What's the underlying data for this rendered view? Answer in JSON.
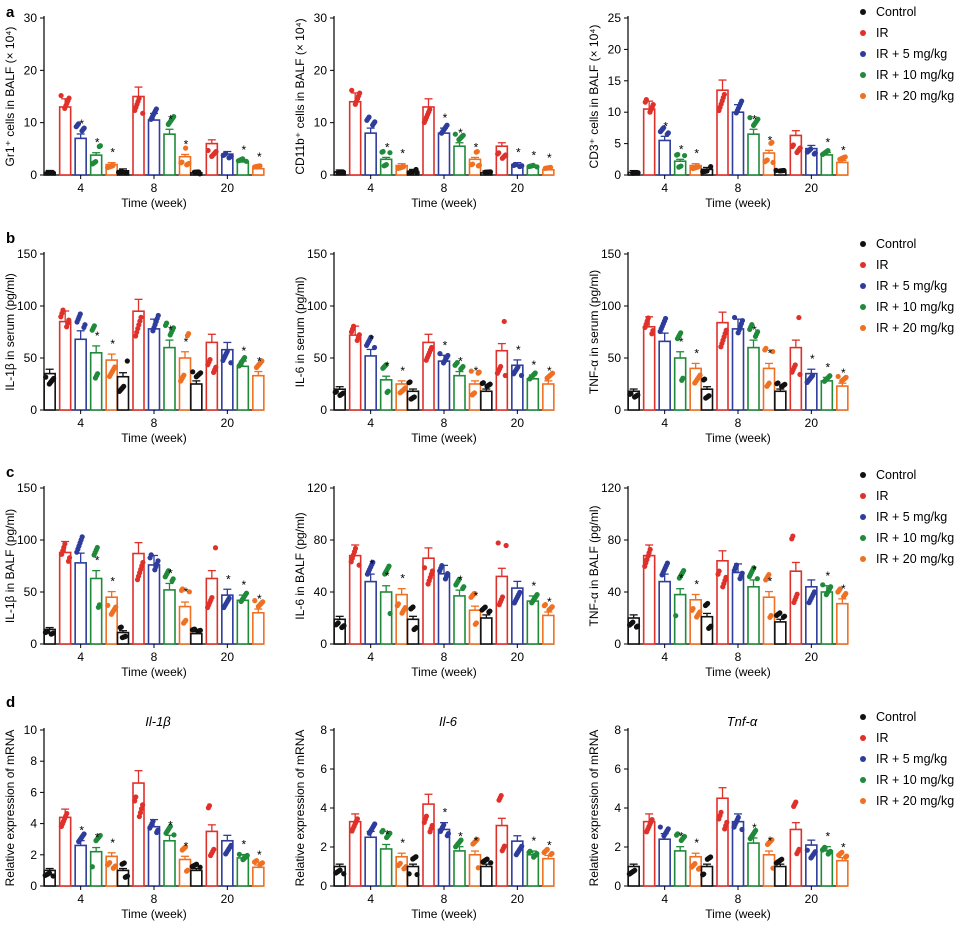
{
  "figure": {
    "colors": {
      "Control": "#111111",
      "IR": "#e0302a",
      "IR + 5 mg/kg": "#2e3d9c",
      "IR + 10 mg/kg": "#1f8a3a",
      "IR + 20 mg/kg": "#f07022"
    },
    "groups": [
      "Control",
      "IR",
      "IR + 5 mg/kg",
      "IR + 10 mg/kg",
      "IR + 20 mg/kg"
    ],
    "star": "*"
  },
  "panels": [
    {
      "letter": "a"
    },
    {
      "letter": "b"
    },
    {
      "letter": "c"
    },
    {
      "letter": "d"
    }
  ],
  "chart_data": [
    {
      "id": "a1",
      "type": "bar",
      "panel": "a",
      "title": "",
      "ylabel": "Gr1⁺ cells in BALF (× 10⁴)",
      "xlabel": "Time (week)",
      "categories": [
        "4",
        "8",
        "20"
      ],
      "ylim": [
        0,
        30
      ],
      "yticks": [
        0,
        10,
        20,
        30
      ],
      "ytick_labels": [
        "0",
        "10",
        "20",
        "30"
      ],
      "series": [
        {
          "name": "Control",
          "values": [
            0.5,
            0.8,
            0.4
          ]
        },
        {
          "name": "IR",
          "values": [
            13,
            15,
            6
          ]
        },
        {
          "name": "IR + 5 mg/kg",
          "values": [
            7,
            10.5,
            4
          ]
        },
        {
          "name": "IR + 10 mg/kg",
          "values": [
            3.8,
            7.8,
            2.5
          ]
        },
        {
          "name": "IR + 20 mg/kg",
          "values": [
            2,
            3.5,
            1.2
          ]
        }
      ],
      "stars": [
        [
          0,
          0,
          1,
          1,
          1
        ],
        [
          0,
          0,
          0,
          1,
          1
        ],
        [
          0,
          0,
          0,
          1,
          1
        ]
      ]
    },
    {
      "id": "a2",
      "type": "bar",
      "panel": "a",
      "title": "",
      "ylabel": "CD11b⁺ cells in BALF (× 10⁴)",
      "xlabel": "Time (week)",
      "categories": [
        "4",
        "8",
        "20"
      ],
      "ylim": [
        0,
        30
      ],
      "yticks": [
        0,
        10,
        20,
        30
      ],
      "ytick_labels": [
        "0",
        "10",
        "20",
        "30"
      ],
      "series": [
        {
          "name": "Control",
          "values": [
            0.6,
            0.7,
            0.4
          ]
        },
        {
          "name": "IR",
          "values": [
            14,
            13,
            5.5
          ]
        },
        {
          "name": "IR + 5 mg/kg",
          "values": [
            8,
            8,
            2
          ]
        },
        {
          "name": "IR + 10 mg/kg",
          "values": [
            3,
            5.5,
            1.5
          ]
        },
        {
          "name": "IR + 20 mg/kg",
          "values": [
            1.8,
            3,
            1
          ]
        }
      ],
      "stars": [
        [
          0,
          0,
          0,
          1,
          1
        ],
        [
          0,
          0,
          1,
          1,
          1
        ],
        [
          0,
          0,
          1,
          1,
          1
        ]
      ]
    },
    {
      "id": "a3",
      "type": "bar",
      "panel": "a",
      "title": "",
      "ylabel": "CD3⁺ cells in BALF (× 10⁴)",
      "xlabel": "Time (week)",
      "categories": [
        "4",
        "8",
        "20"
      ],
      "ylim": [
        0,
        25
      ],
      "yticks": [
        0,
        5,
        10,
        15,
        20,
        25
      ],
      "ytick_labels": [
        "0",
        "5",
        "10",
        "15",
        "20",
        "25"
      ],
      "series": [
        {
          "name": "Control",
          "values": [
            0.4,
            0.9,
            0.5
          ]
        },
        {
          "name": "IR",
          "values": [
            10.5,
            13.5,
            6.3
          ]
        },
        {
          "name": "IR + 5 mg/kg",
          "values": [
            5.5,
            10,
            4.2
          ]
        },
        {
          "name": "IR + 10 mg/kg",
          "values": [
            2.2,
            6.5,
            3.2
          ]
        },
        {
          "name": "IR + 20 mg/kg",
          "values": [
            1.5,
            3.5,
            2
          ]
        }
      ],
      "stars": [
        [
          0,
          0,
          1,
          1,
          1
        ],
        [
          0,
          0,
          0,
          1,
          1
        ],
        [
          0,
          0,
          0,
          1,
          1
        ]
      ]
    },
    {
      "id": "b1",
      "type": "bar",
      "panel": "b",
      "title": "",
      "ylabel": "IL-1β in serum (pg/ml)",
      "xlabel": "Time (week)",
      "categories": [
        "4",
        "8",
        "20"
      ],
      "ylim": [
        0,
        150
      ],
      "yticks": [
        0,
        50,
        100,
        150
      ],
      "ytick_labels": [
        "0",
        "50",
        "100",
        "150"
      ],
      "series": [
        {
          "name": "Control",
          "values": [
            35,
            32,
            25
          ]
        },
        {
          "name": "IR",
          "values": [
            85,
            95,
            65
          ]
        },
        {
          "name": "IR + 5 mg/kg",
          "values": [
            68,
            78,
            58
          ]
        },
        {
          "name": "IR + 10 mg/kg",
          "values": [
            55,
            60,
            42
          ]
        },
        {
          "name": "IR + 20 mg/kg",
          "values": [
            48,
            50,
            33
          ]
        }
      ],
      "stars": [
        [
          0,
          0,
          0,
          1,
          1
        ],
        [
          0,
          0,
          0,
          1,
          1
        ],
        [
          0,
          0,
          0,
          1,
          1
        ]
      ]
    },
    {
      "id": "b2",
      "type": "bar",
      "panel": "b",
      "title": "",
      "ylabel": "IL-6 in serum (pg/ml)",
      "xlabel": "Time (week)",
      "categories": [
        "4",
        "8",
        "20"
      ],
      "ylim": [
        0,
        150
      ],
      "yticks": [
        0,
        50,
        100,
        150
      ],
      "ytick_labels": [
        "0",
        "50",
        "100",
        "150"
      ],
      "series": [
        {
          "name": "Control",
          "values": [
            20,
            18,
            18
          ]
        },
        {
          "name": "IR",
          "values": [
            72,
            65,
            57
          ]
        },
        {
          "name": "IR + 5 mg/kg",
          "values": [
            52,
            47,
            43
          ]
        },
        {
          "name": "IR + 10 mg/kg",
          "values": [
            29,
            33,
            30
          ]
        },
        {
          "name": "IR + 20 mg/kg",
          "values": [
            25,
            25,
            25
          ]
        }
      ],
      "stars": [
        [
          0,
          0,
          1,
          1,
          1
        ],
        [
          0,
          0,
          1,
          1,
          1
        ],
        [
          0,
          0,
          1,
          1,
          1
        ]
      ]
    },
    {
      "id": "b3",
      "type": "bar",
      "panel": "b",
      "title": "",
      "ylabel": "TNF-α in serum (pg/ml)",
      "xlabel": "Time (week)",
      "categories": [
        "4",
        "8",
        "20"
      ],
      "ylim": [
        0,
        150
      ],
      "yticks": [
        0,
        50,
        100,
        150
      ],
      "ytick_labels": [
        "0",
        "50",
        "100",
        "150"
      ],
      "series": [
        {
          "name": "Control",
          "values": [
            18,
            20,
            18
          ]
        },
        {
          "name": "IR",
          "values": [
            80,
            84,
            60
          ]
        },
        {
          "name": "IR + 5 mg/kg",
          "values": [
            66,
            78,
            35
          ]
        },
        {
          "name": "IR + 10 mg/kg",
          "values": [
            50,
            60,
            28
          ]
        },
        {
          "name": "IR + 20 mg/kg",
          "values": [
            40,
            40,
            23
          ]
        }
      ],
      "stars": [
        [
          0,
          0,
          0,
          1,
          1
        ],
        [
          0,
          0,
          0,
          1,
          1
        ],
        [
          0,
          0,
          1,
          1,
          1
        ]
      ]
    },
    {
      "id": "c1",
      "type": "bar",
      "panel": "c",
      "title": "",
      "ylabel": "IL-1β in BALF (pg/ml)",
      "xlabel": "Time (week)",
      "categories": [
        "4",
        "8",
        "20"
      ],
      "ylim": [
        0,
        150
      ],
      "yticks": [
        0,
        50,
        100,
        150
      ],
      "ytick_labels": [
        "0",
        "50",
        "100",
        "150"
      ],
      "series": [
        {
          "name": "Control",
          "values": [
            14,
            11,
            10
          ]
        },
        {
          "name": "IR",
          "values": [
            88,
            87,
            63
          ]
        },
        {
          "name": "IR + 5 mg/kg",
          "values": [
            78,
            76,
            47
          ]
        },
        {
          "name": "IR + 10 mg/kg",
          "values": [
            63,
            52,
            42
          ]
        },
        {
          "name": "IR + 20 mg/kg",
          "values": [
            45,
            36,
            30
          ]
        }
      ],
      "stars": [
        [
          0,
          0,
          0,
          1,
          1
        ],
        [
          0,
          0,
          0,
          1,
          1
        ],
        [
          0,
          0,
          1,
          1,
          1
        ]
      ]
    },
    {
      "id": "c2",
      "type": "bar",
      "panel": "c",
      "title": "",
      "ylabel": "IL-6 in BALF (pg/ml)",
      "xlabel": "Time (week)",
      "categories": [
        "4",
        "8",
        "20"
      ],
      "ylim": [
        0,
        120
      ],
      "yticks": [
        0,
        40,
        80,
        120
      ],
      "ytick_labels": [
        "0",
        "40",
        "80",
        "120"
      ],
      "series": [
        {
          "name": "Control",
          "values": [
            19,
            19,
            20
          ]
        },
        {
          "name": "IR",
          "values": [
            68,
            66,
            52
          ]
        },
        {
          "name": "IR + 5 mg/kg",
          "values": [
            48,
            54,
            43
          ]
        },
        {
          "name": "IR + 10 mg/kg",
          "values": [
            40,
            37,
            33
          ]
        },
        {
          "name": "IR + 20 mg/kg",
          "values": [
            38,
            26,
            22
          ]
        }
      ],
      "stars": [
        [
          0,
          0,
          1,
          1,
          1
        ],
        [
          0,
          0,
          0,
          1,
          1
        ],
        [
          0,
          0,
          0,
          1,
          1
        ]
      ]
    },
    {
      "id": "c3",
      "type": "bar",
      "panel": "c",
      "title": "",
      "ylabel": "TNF-α in BALF (pg/ml)",
      "xlabel": "Time (week)",
      "categories": [
        "4",
        "8",
        "20"
      ],
      "ylim": [
        0,
        120
      ],
      "yticks": [
        0,
        40,
        80,
        120
      ],
      "ytick_labels": [
        "0",
        "40",
        "80",
        "120"
      ],
      "series": [
        {
          "name": "Control",
          "values": [
            20,
            21,
            17
          ]
        },
        {
          "name": "IR",
          "values": [
            68,
            64,
            56
          ]
        },
        {
          "name": "IR + 5 mg/kg",
          "values": [
            48,
            55,
            44
          ]
        },
        {
          "name": "IR + 10 mg/kg",
          "values": [
            38,
            44,
            40
          ]
        },
        {
          "name": "IR + 20 mg/kg",
          "values": [
            34,
            36,
            31
          ]
        }
      ],
      "stars": [
        [
          0,
          0,
          0,
          1,
          1
        ],
        [
          0,
          0,
          0,
          1,
          1
        ],
        [
          0,
          0,
          0,
          1,
          1
        ]
      ]
    },
    {
      "id": "d1",
      "type": "bar",
      "panel": "d",
      "title": "Il-1β",
      "ylabel": "Relative expression of mRNA",
      "xlabel": "Time (week)",
      "categories": [
        "4",
        "8",
        "20"
      ],
      "ylim": [
        0,
        10
      ],
      "yticks": [
        0,
        2,
        4,
        6,
        8,
        10
      ],
      "ytick_labels": [
        "0",
        "2",
        "4",
        "6",
        "8",
        "10"
      ],
      "series": [
        {
          "name": "Control",
          "values": [
            1,
            1,
            1
          ]
        },
        {
          "name": "IR",
          "values": [
            4.4,
            6.6,
            3.5
          ]
        },
        {
          "name": "IR + 5 mg/kg",
          "values": [
            2.6,
            3.8,
            2.9
          ]
        },
        {
          "name": "IR + 10 mg/kg",
          "values": [
            2.2,
            2.9,
            1.8
          ]
        },
        {
          "name": "IR + 20 mg/kg",
          "values": [
            1.9,
            1.7,
            1.2
          ]
        }
      ],
      "stars": [
        [
          0,
          0,
          1,
          1,
          1
        ],
        [
          0,
          0,
          0,
          1,
          1
        ],
        [
          0,
          0,
          0,
          1,
          1
        ]
      ]
    },
    {
      "id": "d2",
      "type": "bar",
      "panel": "d",
      "title": "Il-6",
      "ylabel": "Relative expression of mRNA",
      "xlabel": "Time (week)",
      "categories": [
        "4",
        "8",
        "20"
      ],
      "ylim": [
        0,
        8
      ],
      "yticks": [
        0,
        2,
        4,
        6,
        8
      ],
      "ytick_labels": [
        "0",
        "2",
        "4",
        "6",
        "8"
      ],
      "series": [
        {
          "name": "Control",
          "values": [
            1,
            1,
            1
          ]
        },
        {
          "name": "IR",
          "values": [
            3.3,
            4.2,
            3.1
          ]
        },
        {
          "name": "IR + 5 mg/kg",
          "values": [
            2.5,
            2.9,
            2.3
          ]
        },
        {
          "name": "IR + 10 mg/kg",
          "values": [
            1.9,
            1.8,
            1.6
          ]
        },
        {
          "name": "IR + 20 mg/kg",
          "values": [
            1.5,
            1.6,
            1.4
          ]
        }
      ],
      "stars": [
        [
          0,
          0,
          0,
          1,
          1
        ],
        [
          0,
          0,
          1,
          1,
          1
        ],
        [
          0,
          0,
          0,
          1,
          1
        ]
      ]
    },
    {
      "id": "d3",
      "type": "bar",
      "panel": "d",
      "title": "Tnf-α",
      "ylabel": "Relative expression of mRNA",
      "xlabel": "Time (week)",
      "categories": [
        "4",
        "8",
        "20"
      ],
      "ylim": [
        0,
        8
      ],
      "yticks": [
        0,
        2,
        4,
        6,
        8
      ],
      "ytick_labels": [
        "0",
        "2",
        "4",
        "6",
        "8"
      ],
      "series": [
        {
          "name": "Control",
          "values": [
            1,
            1,
            1
          ]
        },
        {
          "name": "IR",
          "values": [
            3.3,
            4.5,
            2.9
          ]
        },
        {
          "name": "IR + 5 mg/kg",
          "values": [
            2.4,
            3.3,
            2.1
          ]
        },
        {
          "name": "IR + 10 mg/kg",
          "values": [
            1.8,
            2.2,
            1.8
          ]
        },
        {
          "name": "IR + 20 mg/kg",
          "values": [
            1.5,
            1.6,
            1.3
          ]
        }
      ],
      "stars": [
        [
          0,
          0,
          0,
          1,
          1
        ],
        [
          0,
          0,
          0,
          1,
          1
        ],
        [
          0,
          0,
          0,
          1,
          1
        ]
      ]
    }
  ]
}
